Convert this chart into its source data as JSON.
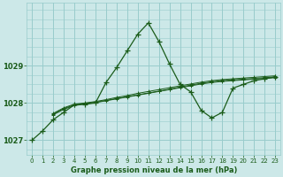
{
  "title": "Graphe pression niveau de la mer (hPa)",
  "background_color": "#cce8e8",
  "grid_color": "#99cccc",
  "line_color": "#1a5c1a",
  "xlim": [
    -0.5,
    23.5
  ],
  "ylim": [
    1026.6,
    1030.7
  ],
  "yticks": [
    1027,
    1028,
    1029
  ],
  "xticks": [
    0,
    1,
    2,
    3,
    4,
    5,
    6,
    7,
    8,
    9,
    10,
    11,
    12,
    13,
    14,
    15,
    16,
    17,
    18,
    19,
    20,
    21,
    22,
    23
  ],
  "series0": {
    "x": [
      0,
      1,
      2,
      3,
      4,
      5,
      6,
      7,
      8,
      9,
      10,
      11,
      12,
      13,
      14,
      15,
      16,
      17,
      18,
      19,
      20,
      21,
      22,
      23
    ],
    "y": [
      1027.0,
      1027.25,
      1027.55,
      1027.75,
      1027.95,
      1027.97,
      1028.0,
      1028.55,
      1028.95,
      1029.4,
      1029.85,
      1030.15,
      1029.65,
      1029.05,
      1028.5,
      1028.3,
      1027.8,
      1027.6,
      1027.75,
      1028.4,
      1028.5,
      1028.6,
      1028.65,
      1028.7
    ]
  },
  "series1": {
    "x": [
      2,
      3,
      4,
      5,
      6,
      7,
      8,
      9,
      10,
      11,
      12,
      13,
      14,
      15,
      16,
      17,
      18,
      19,
      20,
      21,
      22,
      23
    ],
    "y": [
      1027.7,
      1027.85,
      1027.95,
      1027.99,
      1028.02,
      1028.07,
      1028.12,
      1028.17,
      1028.22,
      1028.27,
      1028.32,
      1028.37,
      1028.43,
      1028.48,
      1028.53,
      1028.57,
      1028.6,
      1028.62,
      1028.64,
      1028.66,
      1028.68,
      1028.7
    ]
  },
  "series2": {
    "x": [
      2,
      3,
      4,
      5,
      6,
      7,
      8,
      9,
      10,
      11,
      12,
      13,
      14,
      15,
      16,
      17,
      18,
      19,
      20,
      21,
      22,
      23
    ],
    "y": [
      1027.72,
      1027.87,
      1027.97,
      1028.0,
      1028.04,
      1028.09,
      1028.15,
      1028.2,
      1028.26,
      1028.31,
      1028.36,
      1028.41,
      1028.46,
      1028.51,
      1028.56,
      1028.6,
      1028.63,
      1028.65,
      1028.67,
      1028.69,
      1028.71,
      1028.73
    ]
  },
  "series3": {
    "x": [
      2,
      3,
      4,
      5,
      6,
      7,
      8,
      9,
      10,
      11,
      12,
      13,
      14,
      15,
      16,
      17,
      18,
      19,
      20,
      21,
      22,
      23
    ],
    "y": [
      1027.68,
      1027.83,
      1027.93,
      1027.97,
      1028.01,
      1028.06,
      1028.11,
      1028.16,
      1028.21,
      1028.26,
      1028.31,
      1028.36,
      1028.41,
      1028.46,
      1028.51,
      1028.55,
      1028.58,
      1028.6,
      1028.62,
      1028.64,
      1028.66,
      1028.68
    ]
  }
}
